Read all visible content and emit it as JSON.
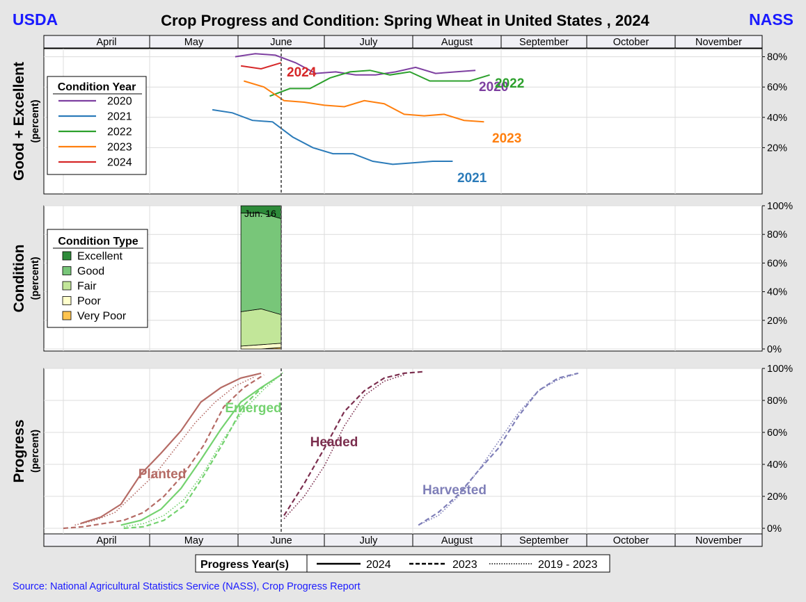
{
  "header": {
    "left_brand": "USDA",
    "right_brand": "NASS",
    "title": "Crop Progress and Condition: Spring Wheat in United States , 2024"
  },
  "colors": {
    "brand": "#1a1aff",
    "y2020": "#7d3fa0",
    "y2021": "#2b7bb9",
    "y2022": "#2ca02c",
    "y2023": "#ff7f0e",
    "y2024": "#d62728",
    "excellent": "#2e8b3a",
    "good": "#78c679",
    "fair": "#c2e699",
    "poor": "#ffffcc",
    "very_poor": "#fec44f",
    "planted": "#b56b65",
    "emerged": "#74d26f",
    "headed": "#7b2e4e",
    "harvested": "#7f7fb8"
  },
  "months": [
    "April",
    "May",
    "June",
    "July",
    "August",
    "September",
    "October",
    "November"
  ],
  "footer": {
    "source": "Source: National Agricultural Statistics Service (NASS), Crop Progress Report"
  },
  "progress_legend": {
    "title": "Progress Year(s)",
    "items": [
      {
        "label": "2024",
        "style": "solid"
      },
      {
        "label": "2023",
        "style": "dashed"
      },
      {
        "label": "2019 - 2023",
        "style": "dotted"
      }
    ]
  },
  "chart_data": [
    {
      "type": "line",
      "panel": "good_excellent",
      "ylabel": "Good + Excellent",
      "ylabel_sub": "(percent)",
      "ylim": [
        0,
        100
      ],
      "yticks": [
        "20%",
        "40%",
        "60%",
        "80%"
      ],
      "x_axis": "date",
      "current_week_marker": "2024-06-16",
      "legend_title": "Condition Year",
      "grid": true,
      "series": [
        {
          "name": "2020",
          "color_key": "y2020",
          "dates": [
            "2024-05-31",
            "2024-06-07",
            "2024-06-14",
            "2024-06-21",
            "2024-06-28",
            "2024-07-05",
            "2024-07-12",
            "2024-07-19",
            "2024-07-26",
            "2024-08-02",
            "2024-08-09",
            "2024-08-16",
            "2024-08-23"
          ],
          "values": [
            80,
            82,
            81,
            76,
            69,
            70,
            68,
            68,
            70,
            73,
            69,
            70,
            71
          ]
        },
        {
          "name": "2021",
          "color_key": "y2021",
          "dates": [
            "2024-05-23",
            "2024-05-30",
            "2024-06-06",
            "2024-06-13",
            "2024-06-20",
            "2024-06-27",
            "2024-07-04",
            "2024-07-11",
            "2024-07-18",
            "2024-07-25",
            "2024-08-01",
            "2024-08-08",
            "2024-08-15"
          ],
          "values": [
            45,
            43,
            38,
            37,
            27,
            20,
            16,
            16,
            11,
            9,
            10,
            11,
            11
          ]
        },
        {
          "name": "2022",
          "color_key": "y2022",
          "dates": [
            "2024-06-12",
            "2024-06-19",
            "2024-06-26",
            "2024-07-03",
            "2024-07-10",
            "2024-07-17",
            "2024-07-24",
            "2024-07-31",
            "2024-08-07",
            "2024-08-14",
            "2024-08-21",
            "2024-08-28"
          ],
          "values": [
            54,
            59,
            59,
            66,
            70,
            71,
            68,
            70,
            64,
            64,
            64,
            68
          ]
        },
        {
          "name": "2023",
          "color_key": "y2023",
          "dates": [
            "2024-06-03",
            "2024-06-10",
            "2024-06-17",
            "2024-06-24",
            "2024-07-01",
            "2024-07-08",
            "2024-07-15",
            "2024-07-22",
            "2024-07-29",
            "2024-08-05",
            "2024-08-12",
            "2024-08-19",
            "2024-08-26"
          ],
          "values": [
            64,
            60,
            51,
            50,
            48,
            47,
            51,
            49,
            42,
            41,
            42,
            38,
            37
          ]
        },
        {
          "name": "2024",
          "color_key": "y2024",
          "dates": [
            "2024-06-02",
            "2024-06-09",
            "2024-06-16"
          ],
          "values": [
            74,
            72,
            76
          ]
        }
      ],
      "end_labels": [
        {
          "text": "2024",
          "color_key": "y2024"
        },
        {
          "text": "2020",
          "color_key": "y2020"
        },
        {
          "text": "2022",
          "color_key": "y2022"
        },
        {
          "text": "2023",
          "color_key": "y2023"
        },
        {
          "text": "2021",
          "color_key": "y2021"
        }
      ]
    },
    {
      "type": "area",
      "panel": "condition",
      "ylabel": "Condition",
      "ylabel_sub": "(percent)",
      "ylim": [
        0,
        100
      ],
      "yticks": [
        "0%",
        "20%",
        "40%",
        "60%",
        "80%",
        "100%"
      ],
      "legend_title": "Condition Type",
      "annotation": "Jun. 16",
      "dates": [
        "2024-06-02",
        "2024-06-09",
        "2024-06-16"
      ],
      "series": [
        {
          "name": "Very Poor",
          "color_key": "very_poor",
          "values": [
            0,
            0,
            1
          ]
        },
        {
          "name": "Poor",
          "color_key": "poor",
          "values": [
            2,
            3,
            3
          ]
        },
        {
          "name": "Fair",
          "color_key": "fair",
          "values": [
            24,
            25,
            20
          ]
        },
        {
          "name": "Good",
          "color_key": "good",
          "values": [
            69,
            67,
            67
          ]
        },
        {
          "name": "Excellent",
          "color_key": "excellent",
          "values": [
            5,
            5,
            9
          ]
        }
      ]
    },
    {
      "type": "line",
      "panel": "progress",
      "ylabel": "Progress",
      "ylabel_sub": "(percent)",
      "ylim": [
        0,
        100
      ],
      "yticks": [
        "0%",
        "20%",
        "40%",
        "60%",
        "80%",
        "100%"
      ],
      "stages": [
        {
          "name": "Planted",
          "color_key": "planted",
          "lines": [
            {
              "style": "solid",
              "dates": [
                "2024-04-07",
                "2024-04-14",
                "2024-04-21",
                "2024-04-28",
                "2024-05-05",
                "2024-05-12",
                "2024-05-19",
                "2024-05-26",
                "2024-06-02",
                "2024-06-09"
              ],
              "values": [
                3,
                7,
                15,
                34,
                47,
                61,
                79,
                88,
                94,
                97
              ]
            },
            {
              "style": "dashed",
              "dates": [
                "2024-04-01",
                "2024-04-08",
                "2024-04-15",
                "2024-04-22",
                "2024-04-29",
                "2024-05-06",
                "2024-05-13",
                "2024-05-20",
                "2024-05-27",
                "2024-06-03",
                "2024-06-10"
              ],
              "values": [
                0,
                1,
                3,
                5,
                10,
                20,
                34,
                52,
                76,
                88,
                96
              ]
            },
            {
              "style": "dotted",
              "dates": [
                "2024-04-05",
                "2024-04-12",
                "2024-04-19",
                "2024-04-26",
                "2024-05-03",
                "2024-05-10",
                "2024-05-17",
                "2024-05-24",
                "2024-05-31",
                "2024-06-07"
              ],
              "values": [
                2,
                5,
                10,
                22,
                34,
                50,
                66,
                79,
                89,
                95
              ]
            }
          ]
        },
        {
          "name": "Emerged",
          "color_key": "emerged",
          "lines": [
            {
              "style": "solid",
              "dates": [
                "2024-04-21",
                "2024-04-28",
                "2024-05-05",
                "2024-05-12",
                "2024-05-19",
                "2024-05-26",
                "2024-06-02",
                "2024-06-09",
                "2024-06-16"
              ],
              "values": [
                2,
                5,
                12,
                25,
                43,
                62,
                79,
                88,
                96
              ]
            },
            {
              "style": "dashed",
              "dates": [
                "2024-04-22",
                "2024-04-29",
                "2024-05-06",
                "2024-05-13",
                "2024-05-20",
                "2024-05-27",
                "2024-06-03",
                "2024-06-10"
              ],
              "values": [
                0,
                1,
                5,
                14,
                33,
                54,
                77,
                89
              ]
            },
            {
              "style": "dotted",
              "dates": [
                "2024-04-22",
                "2024-04-29",
                "2024-05-06",
                "2024-05-13",
                "2024-05-20",
                "2024-05-27",
                "2024-06-03",
                "2024-06-10",
                "2024-06-17"
              ],
              "values": [
                1,
                3,
                8,
                18,
                35,
                56,
                74,
                87,
                98
              ]
            }
          ]
        },
        {
          "name": "Headed",
          "color_key": "headed",
          "lines": [
            {
              "style": "dashed",
              "dates": [
                "2024-06-17",
                "2024-06-24",
                "2024-07-01",
                "2024-07-08",
                "2024-07-15",
                "2024-07-22",
                "2024-07-29",
                "2024-08-05"
              ],
              "values": [
                8,
                28,
                50,
                73,
                86,
                94,
                97,
                98
              ]
            },
            {
              "style": "dotted",
              "dates": [
                "2024-06-17",
                "2024-06-24",
                "2024-07-01",
                "2024-07-08",
                "2024-07-15",
                "2024-07-22",
                "2024-07-29"
              ],
              "values": [
                6,
                20,
                39,
                64,
                83,
                92,
                96
              ]
            }
          ]
        },
        {
          "name": "Harvested",
          "color_key": "harvested",
          "lines": [
            {
              "style": "dashed",
              "dates": [
                "2024-08-03",
                "2024-08-10",
                "2024-08-17",
                "2024-08-24",
                "2024-08-31",
                "2024-09-07",
                "2024-09-14",
                "2024-09-21",
                "2024-09-28"
              ],
              "values": [
                2,
                10,
                21,
                36,
                50,
                70,
                86,
                94,
                97
              ]
            },
            {
              "style": "dotted",
              "dates": [
                "2024-08-03",
                "2024-08-10",
                "2024-08-17",
                "2024-08-24",
                "2024-08-31",
                "2024-09-07",
                "2024-09-14",
                "2024-09-21",
                "2024-09-28"
              ],
              "values": [
                2,
                8,
                20,
                36,
                54,
                72,
                86,
                93,
                97
              ]
            }
          ]
        }
      ]
    }
  ]
}
